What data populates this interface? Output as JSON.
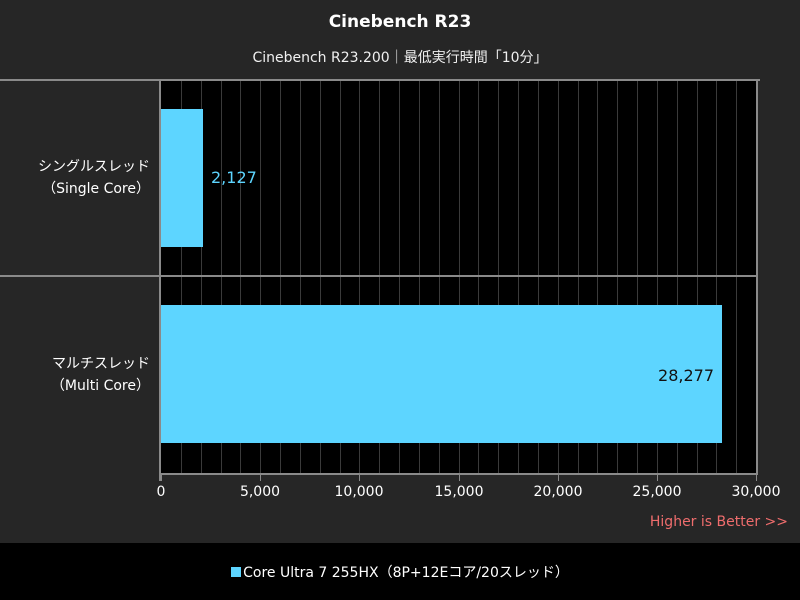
{
  "chart_data": {
    "type": "bar",
    "orientation": "horizontal",
    "title": "Cinebench R23",
    "subtitle": "Cinebench R23.200｜最低実行時間「10分」",
    "categories": [
      "シングルスレッド（Single Core）",
      "マルチスレッド（Multi Core）"
    ],
    "category_lines": [
      [
        "シングルスレッド",
        "（Single Core）"
      ],
      [
        "マルチスレッド",
        "（Multi Core）"
      ]
    ],
    "series": [
      {
        "name": "Core Ultra 7 255HX（8P+12Eコア/20スレッド）",
        "color": "#5dd5ff",
        "values": [
          2127,
          28277
        ]
      }
    ],
    "value_labels": [
      "2,127",
      "28,277"
    ],
    "xlabel": "",
    "ylabel": "",
    "xlim": [
      0,
      30000
    ],
    "x_ticks": [
      0,
      5000,
      10000,
      15000,
      20000,
      25000,
      30000
    ],
    "x_tick_labels": [
      "0",
      "5,000",
      "10,000",
      "15,000",
      "20,000",
      "25,000",
      "30,000"
    ],
    "grid": {
      "vertical": true,
      "step": 1000
    },
    "annotation": "Higher is Better >>",
    "legend_position": "bottom"
  },
  "header": {
    "title": "Cinebench R23",
    "subtitle": "Cinebench R23.200｜最低実行時間「10分」"
  },
  "rows": [
    {
      "label_jp": "シングルスレッド",
      "label_en": "（Single Core）",
      "value": 2127,
      "value_label": "2,127",
      "label_color": "#5dd5ff"
    },
    {
      "label_jp": "マルチスレッド",
      "label_en": "（Multi Core）",
      "value": 28277,
      "value_label": "28,277",
      "label_color": "#111111"
    }
  ],
  "axis": {
    "ticks": [
      "0",
      "5,000",
      "10,000",
      "15,000",
      "20,000",
      "25,000",
      "30,000"
    ]
  },
  "annotation": "Higher is Better >>",
  "legend": {
    "label": "Core Ultra 7 255HX（8P+12Eコア/20スレッド）",
    "color": "#5dd5ff"
  }
}
